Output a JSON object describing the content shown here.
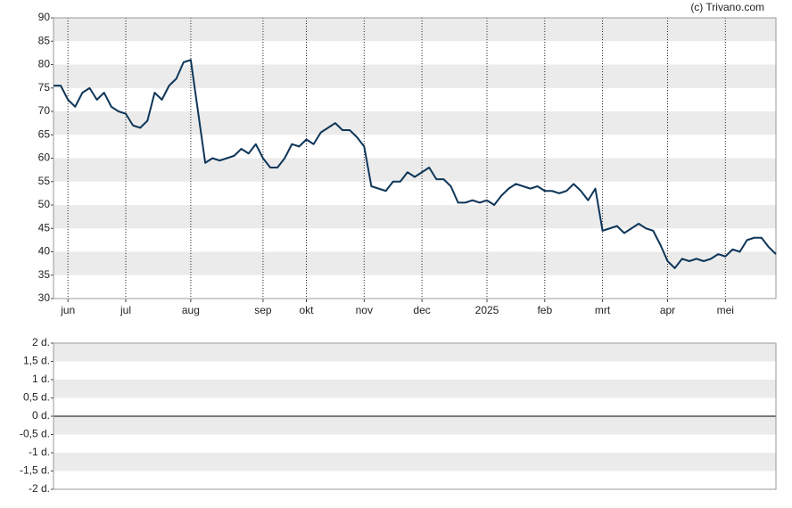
{
  "chart_data": [
    {
      "type": "line",
      "source": "(c) Trivano.com",
      "categories": [
        null,
        null,
        "jun",
        null,
        null,
        null,
        null,
        null,
        null,
        null,
        "jul",
        null,
        null,
        null,
        null,
        null,
        null,
        null,
        null,
        "aug",
        null,
        null,
        null,
        null,
        null,
        null,
        null,
        null,
        null,
        "sep",
        null,
        null,
        null,
        null,
        null,
        "okt",
        null,
        null,
        null,
        null,
        null,
        null,
        null,
        "nov",
        null,
        null,
        null,
        null,
        null,
        null,
        null,
        "dec",
        null,
        null,
        null,
        null,
        null,
        null,
        null,
        null,
        "2025",
        null,
        null,
        null,
        null,
        null,
        null,
        null,
        "feb",
        null,
        null,
        null,
        null,
        null,
        null,
        null,
        "mrt",
        null,
        null,
        null,
        null,
        null,
        null,
        null,
        null,
        "apr",
        null,
        null,
        null,
        null,
        null,
        null,
        null,
        "mei",
        null,
        null,
        null,
        null,
        null,
        null,
        null
      ],
      "values": [
        75.5,
        75.5,
        72.5,
        71,
        74,
        75,
        72.5,
        74,
        71,
        70,
        69.5,
        67,
        66.5,
        68,
        74,
        72.5,
        75.5,
        77,
        80.5,
        81,
        70,
        59,
        60,
        59.5,
        60,
        60.5,
        62,
        61,
        63,
        60,
        58,
        58,
        60,
        63,
        62.5,
        64,
        63,
        65.5,
        66.5,
        67.5,
        66,
        66,
        64.5,
        62.5,
        54,
        53.5,
        53,
        55,
        55,
        57,
        56,
        57,
        58,
        55.5,
        55.5,
        54,
        50.5,
        50.5,
        51,
        50.5,
        51,
        50,
        52,
        53.5,
        54.5,
        54,
        53.5,
        54,
        53,
        53,
        52.5,
        53,
        54.5,
        53,
        51,
        53.5,
        44.5,
        45,
        45.5,
        44,
        45,
        46,
        45,
        44.5,
        41.5,
        38,
        36.5,
        38.5,
        38,
        38.5,
        38,
        38.5,
        39.5,
        39,
        40.5,
        40,
        42.5,
        43,
        43,
        41,
        39.5
      ],
      "color": "#0e3659",
      "ylim": [
        30,
        90
      ],
      "yticks": [
        30,
        35,
        40,
        45,
        50,
        55,
        60,
        65,
        70,
        75,
        80,
        85,
        90
      ],
      "grid": true
    },
    {
      "type": "bar",
      "ylim": [
        -2,
        2
      ],
      "yticks": [
        {
          "value": -2,
          "label": "-2 d."
        },
        {
          "value": -1.5,
          "label": "-1,5 d."
        },
        {
          "value": -1,
          "label": "-1 d."
        },
        {
          "value": -0.5,
          "label": "-0,5 d."
        },
        {
          "value": 0,
          "label": "0 d."
        },
        {
          "value": 0.5,
          "label": "0,5 d."
        },
        {
          "value": 1,
          "label": "1 d."
        },
        {
          "value": 1.5,
          "label": "1,5 d."
        },
        {
          "value": 2,
          "label": "2 d."
        }
      ],
      "grid": true
    }
  ]
}
